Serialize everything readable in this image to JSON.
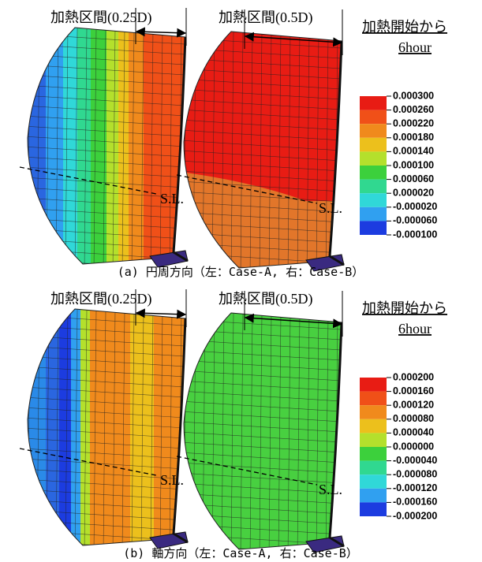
{
  "panels": [
    {
      "left_label": "加熱区間(0.25D)",
      "right_label": "加熱区間(0.5D)",
      "legend_title": [
        "加熱開始から",
        "6hour"
      ],
      "sl_labels": [
        "S.L.",
        "S.L."
      ],
      "colorbar_labels": [
        "0.000300",
        "0.000260",
        "0.000220",
        "0.000180",
        "0.000140",
        "0.000100",
        "0.000060",
        "0.000020",
        "-0.000020",
        "-0.000060",
        "-0.000100"
      ],
      "caption": "(a) 円周方向（左：Case-A, 右：Case-B）"
    },
    {
      "left_label": "加熱区間(0.25D)",
      "right_label": "加熱区間(0.5D)",
      "legend_title": [
        "加熱開始から",
        "6hour"
      ],
      "sl_labels": [
        "S.L.",
        "S.L."
      ],
      "colorbar_labels": [
        "0.000200",
        "0.000160",
        "0.000120",
        "0.000080",
        "0.000040",
        "0.000000",
        "-0.000040",
        "-0.000080",
        "-0.000120",
        "-0.000160",
        "-0.000200"
      ],
      "caption": "(b) 軸方向（左：Case-A, 右：Case-B）"
    }
  ]
}
